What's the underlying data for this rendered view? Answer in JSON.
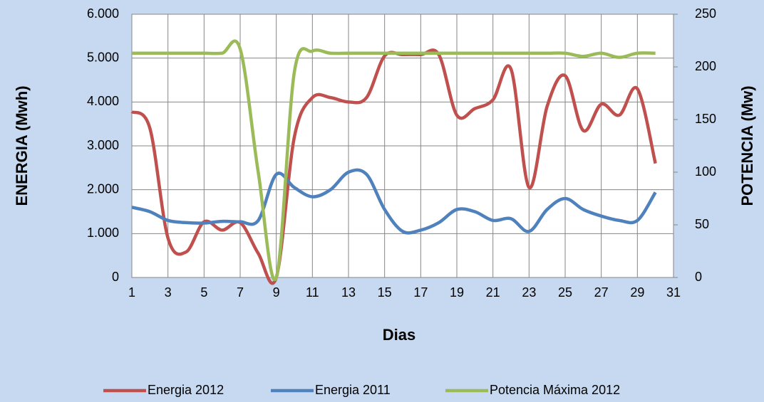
{
  "chart_data": {
    "type": "line",
    "x_label": "Dias",
    "y_label": "ENERGIA (Mwh)",
    "y2_label": "POTENCIA (Mw)",
    "x": [
      1,
      2,
      3,
      4,
      5,
      6,
      7,
      8,
      9,
      10,
      11,
      12,
      13,
      14,
      15,
      16,
      17,
      18,
      19,
      20,
      21,
      22,
      23,
      24,
      25,
      26,
      27,
      28,
      29,
      30
    ],
    "xlim": [
      1,
      31
    ],
    "xticks": [
      1,
      3,
      5,
      7,
      9,
      11,
      13,
      15,
      17,
      19,
      21,
      23,
      25,
      27,
      29,
      31
    ],
    "ylim": [
      0,
      6000
    ],
    "yticks": [
      {
        "value": 0,
        "label": "0"
      },
      {
        "value": 1000,
        "label": "1.000"
      },
      {
        "value": 2000,
        "label": "2.000"
      },
      {
        "value": 3000,
        "label": "3.000"
      },
      {
        "value": 4000,
        "label": "4.000"
      },
      {
        "value": 5000,
        "label": "5.000"
      },
      {
        "value": 6000,
        "label": "6.000"
      }
    ],
    "y2lim": [
      0,
      250
    ],
    "y2ticks": [
      0,
      50,
      100,
      150,
      200,
      250
    ],
    "grid": true,
    "smooth": true,
    "legend": "bottom",
    "series": [
      {
        "name": "Energia 2012",
        "color": "#c0504d",
        "values": [
          3780,
          3400,
          900,
          580,
          1270,
          1080,
          1250,
          550,
          0,
          3200,
          4100,
          4100,
          4000,
          4100,
          5050,
          5080,
          5080,
          5080,
          3700,
          3850,
          4050,
          4750,
          2050,
          3900,
          4600,
          3350,
          3950,
          3700,
          4300,
          2600
        ]
      },
      {
        "name": "Energia 2011",
        "color": "#4f81bd",
        "values": [
          1600,
          1500,
          1300,
          1250,
          1240,
          1280,
          1270,
          1300,
          2350,
          2050,
          1840,
          2000,
          2400,
          2350,
          1550,
          1050,
          1080,
          1250,
          1550,
          1500,
          1300,
          1340,
          1050,
          1550,
          1800,
          1550,
          1400,
          1300,
          1300,
          1940
        ]
      },
      {
        "name": "Potencia Máxima 2012",
        "color": "#9bbb59",
        "axis": "y2",
        "values": [
          213,
          213,
          213,
          213,
          213,
          213,
          217,
          100,
          0,
          195,
          215,
          213,
          213,
          213,
          213,
          213,
          213,
          213,
          213,
          213,
          213,
          213,
          213,
          213,
          213,
          210,
          213,
          209,
          213,
          213
        ]
      }
    ]
  }
}
